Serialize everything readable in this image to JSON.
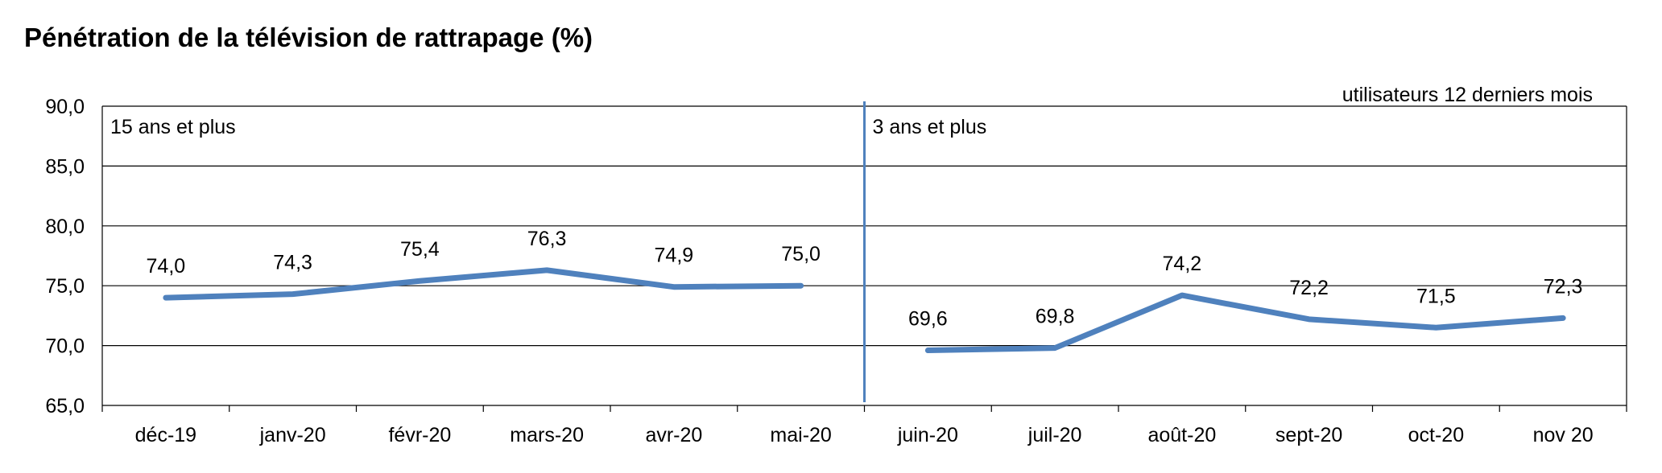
{
  "chart_data": {
    "type": "line",
    "title": "Pénétration de la télévision de rattrapage (%)",
    "note": "utilisateurs 12 derniers mois",
    "categories": [
      "déc-19",
      "janv-20",
      "févr-20",
      "mars-20",
      "avr-20",
      "mai-20",
      "juin-20",
      "juil-20",
      "août-20",
      "sept-20",
      "oct-20",
      "nov 20"
    ],
    "ylim": [
      65,
      90
    ],
    "yticks": [
      "65,0",
      "70,0",
      "75,0",
      "80,0",
      "85,0",
      "90,0"
    ],
    "grid": true,
    "segments": [
      {
        "label": "15 ans et plus",
        "start_index": 0,
        "values": [
          74.0,
          74.3,
          75.4,
          76.3,
          74.9,
          75.0
        ],
        "value_labels": [
          "74,0",
          "74,3",
          "75,4",
          "76,3",
          "74,9",
          "75,0"
        ]
      },
      {
        "label": "3 ans et plus",
        "start_index": 6,
        "values": [
          69.6,
          69.8,
          74.2,
          72.2,
          71.5,
          72.3
        ],
        "value_labels": [
          "69,6",
          "69,8",
          "74,2",
          "72,2",
          "71,5",
          "72,3"
        ]
      }
    ],
    "colors": {
      "line": "#4f81bd",
      "divider": "#4f81bd",
      "grid": "#000000"
    }
  }
}
